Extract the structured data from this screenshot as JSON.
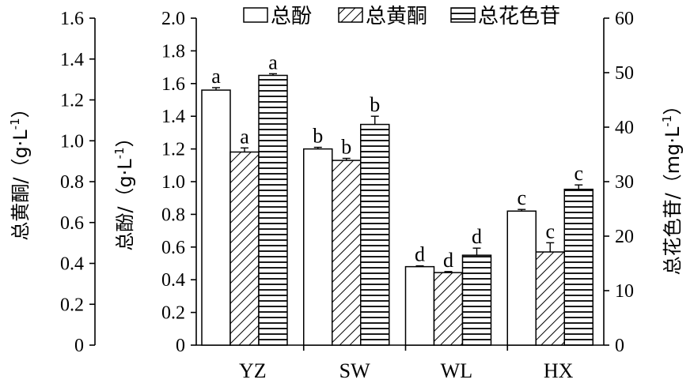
{
  "chart_data": {
    "type": "bar",
    "categories": [
      "YZ",
      "SW",
      "WL",
      "HX"
    ],
    "series": [
      {
        "name": "总酚",
        "axis": "middle",
        "pattern": "plain",
        "values": [
          1.56,
          1.2,
          0.48,
          0.82
        ],
        "errors": [
          0.015,
          0.01,
          0.005,
          0.01
        ],
        "letters": [
          "a",
          "b",
          "d",
          "c"
        ]
      },
      {
        "name": "总黄酮",
        "axis": "left",
        "pattern": "diagonal",
        "values": [
          0.945,
          0.904,
          0.355,
          0.456
        ],
        "errors": [
          0.02,
          0.01,
          0.005,
          0.045
        ],
        "letters": [
          "a",
          "b",
          "d",
          "c"
        ]
      },
      {
        "name": "总花色苷",
        "axis": "right",
        "pattern": "horizontal",
        "values": [
          49.5,
          40.5,
          16.5,
          28.6
        ],
        "errors": [
          0.3,
          1.5,
          1.3,
          0.8
        ],
        "letters": [
          "a",
          "b",
          "d",
          "c"
        ]
      }
    ],
    "axes": {
      "left": {
        "title": "总黄酮/（g·L-1）",
        "title_main": "总黄酮/（g·L",
        "title_sup": "-1",
        "title_end": "）",
        "ylim": [
          0,
          1.6
        ],
        "ticks": [
          "0",
          "0.2",
          "0.4",
          "0.6",
          "0.8",
          "1.0",
          "1.2",
          "1.4",
          "1.6"
        ]
      },
      "middle": {
        "title": "总酚/（g·L-1）",
        "title_main": "总酚/（g·L",
        "title_sup": "-1",
        "title_end": "）",
        "ylim": [
          0,
          2.0
        ],
        "ticks": [
          "0",
          "0.2",
          "0.4",
          "0.6",
          "0.8",
          "1.0",
          "1.2",
          "1.4",
          "1.6",
          "1.8",
          "2.0"
        ]
      },
      "right": {
        "title": "总花色苷/（mg·L-1）",
        "title_main": "总花色苷/（mg·L",
        "title_sup": "-1",
        "title_end": "）",
        "ylim": [
          0,
          60
        ],
        "ticks": [
          "0",
          "10",
          "20",
          "30",
          "40",
          "50",
          "60"
        ]
      }
    },
    "legend_position": "top",
    "grid": false
  }
}
